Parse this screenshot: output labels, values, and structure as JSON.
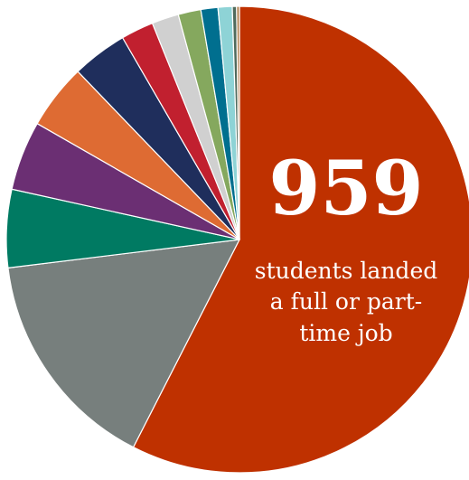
{
  "chart_data": {
    "type": "pie",
    "title": "",
    "slices": [
      {
        "value": 58.5,
        "color": "#bf3100"
      },
      {
        "value": 15.8,
        "color": "#777f7d"
      },
      {
        "value": 5.5,
        "color": "#007a62"
      },
      {
        "value": 4.9,
        "color": "#6b2f73"
      },
      {
        "value": 4.6,
        "color": "#de6b33"
      },
      {
        "value": 3.9,
        "color": "#1f2e5c"
      },
      {
        "value": 2.3,
        "color": "#c1202f"
      },
      {
        "value": 1.9,
        "color": "#d0d0d0"
      },
      {
        "value": 1.6,
        "color": "#85a85e"
      },
      {
        "value": 1.2,
        "color": "#006f8f"
      },
      {
        "value": 1.0,
        "color": "#8ed3d6"
      },
      {
        "value": 0.3,
        "color": "#4f6a5c"
      },
      {
        "value": 0.2,
        "color": "#b07f4d"
      }
    ],
    "annotation": {
      "number": "959",
      "lines": [
        "students landed",
        "a full or part-",
        "time job"
      ]
    }
  }
}
